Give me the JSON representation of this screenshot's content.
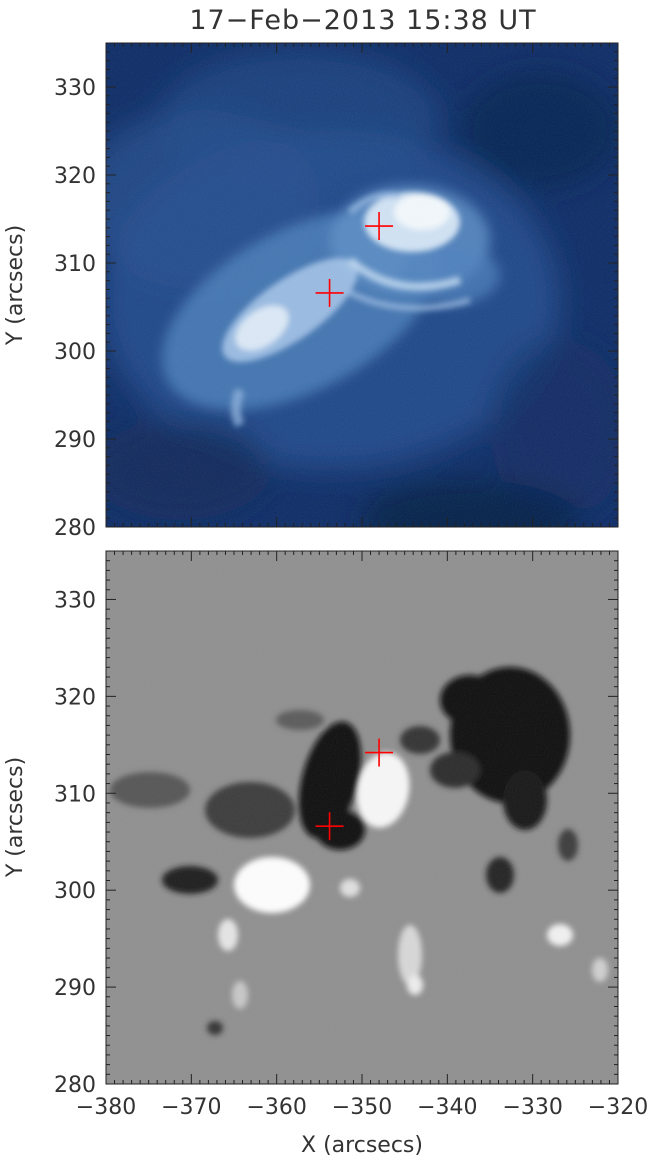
{
  "figure": {
    "title": "17−Feb−2013 15:38 UT",
    "xlabel": "X (arcsecs)",
    "x_ticks": [
      "−380",
      "−370",
      "−360",
      "−350",
      "−340",
      "−330",
      "−320"
    ],
    "x_range": [
      -380,
      -320
    ],
    "y_range": [
      280,
      335
    ]
  },
  "panels": [
    {
      "kind": "euv-intensity-image",
      "colormap": "blue",
      "ylabel": "Y (arcsecs)",
      "y_ticks": [
        "280",
        "290",
        "300",
        "310",
        "320",
        "330"
      ],
      "markers": [
        {
          "symbol": "plus",
          "color": "#ff0000",
          "x": -348.0,
          "y": 314.2
        },
        {
          "symbol": "plus",
          "color": "#ff0000",
          "x": -353.8,
          "y": 306.6
        }
      ]
    },
    {
      "kind": "magnetogram",
      "colormap": "gray",
      "ylabel": "Y (arcsecs)",
      "y_ticks": [
        "280",
        "290",
        "300",
        "310",
        "320",
        "330"
      ],
      "markers": [
        {
          "symbol": "plus",
          "color": "#ff0000",
          "x": -348.0,
          "y": 314.2
        },
        {
          "symbol": "plus",
          "color": "#ff0000",
          "x": -353.8,
          "y": 306.6
        }
      ]
    }
  ]
}
